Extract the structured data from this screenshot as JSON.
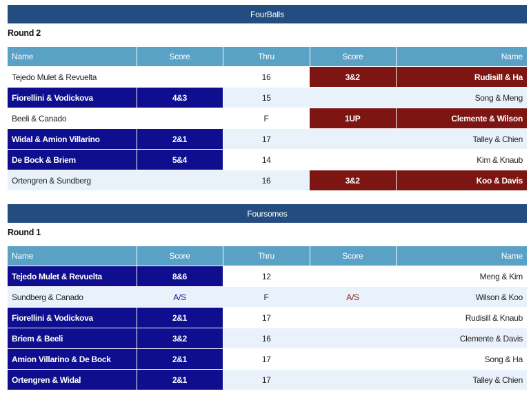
{
  "sections": [
    {
      "title": "FourBalls",
      "round": "Round 2",
      "headers": [
        "Name",
        "Score",
        "Thru",
        "Score",
        "Name"
      ],
      "rows": [
        {
          "left": "Tejedo Mulet & Revuelta",
          "left_score": "",
          "thru": "16",
          "right_score": "3&2",
          "right": "Rudisill & Ha",
          "winner": "right"
        },
        {
          "left": "Fiorellini & Vodickova",
          "left_score": "4&3",
          "thru": "15",
          "right_score": "",
          "right": "Song & Meng",
          "winner": "left"
        },
        {
          "left": "Beeli & Canado",
          "left_score": "",
          "thru": "F",
          "right_score": "1UP",
          "right": "Clemente & Wilson",
          "winner": "right"
        },
        {
          "left": "Widal & Amion Villarino",
          "left_score": "2&1",
          "thru": "17",
          "right_score": "",
          "right": "Talley & Chien",
          "winner": "left"
        },
        {
          "left": "De Bock & Briem",
          "left_score": "5&4",
          "thru": "14",
          "right_score": "",
          "right": "Kim & Knaub",
          "winner": "left"
        },
        {
          "left": "Ortengren & Sundberg",
          "left_score": "",
          "thru": "16",
          "right_score": "3&2",
          "right": "Koo & Davis",
          "winner": "right"
        }
      ]
    },
    {
      "title": "Foursomes",
      "round": "Round 1",
      "headers": [
        "Name",
        "Score",
        "Thru",
        "Score",
        "Name"
      ],
      "rows": [
        {
          "left": "Tejedo Mulet & Revuelta",
          "left_score": "8&6",
          "thru": "12",
          "right_score": "",
          "right": "Meng & Kim",
          "winner": "left"
        },
        {
          "left": "Sundberg & Canado",
          "left_score": "A/S",
          "thru": "F",
          "right_score": "A/S",
          "right": "Wilson & Koo",
          "winner": "halved"
        },
        {
          "left": "Fiorellini & Vodickova",
          "left_score": "2&1",
          "thru": "17",
          "right_score": "",
          "right": "Rudisill & Knaub",
          "winner": "left"
        },
        {
          "left": "Briem & Beeli",
          "left_score": "3&2",
          "thru": "16",
          "right_score": "",
          "right": "Clemente & Davis",
          "winner": "left"
        },
        {
          "left": "Amion Villarino & De Bock",
          "left_score": "2&1",
          "thru": "17",
          "right_score": "",
          "right": "Song & Ha",
          "winner": "left"
        },
        {
          "left": "Ortengren & Widal",
          "left_score": "2&1",
          "thru": "17",
          "right_score": "",
          "right": "Talley & Chien",
          "winner": "left"
        }
      ]
    }
  ],
  "colors": {
    "section_header": "#234d80",
    "column_header": "#5aa1c6",
    "left_win": "#0e0e8e",
    "right_win": "#7d1612",
    "alt_row": "#e9f2fb"
  }
}
